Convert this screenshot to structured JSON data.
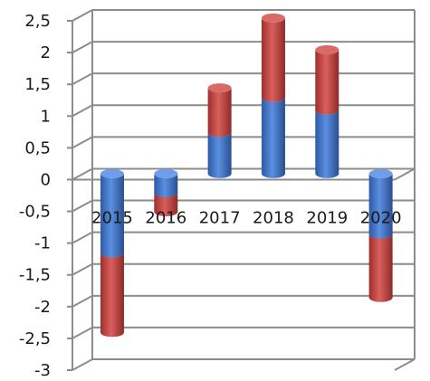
{
  "chart_data": {
    "type": "bar",
    "subtype": "stacked-3d-cylinder",
    "title": "",
    "xlabel": "",
    "ylabel": "",
    "categories": [
      "2015",
      "2016",
      "2017",
      "2018",
      "2019",
      "2020"
    ],
    "series": [
      {
        "color": "#4472c4",
        "values": [
          -1.25,
          -0.3,
          0.65,
          1.2,
          1.0,
          -0.95
        ]
      },
      {
        "color": "#c0504d",
        "values": [
          -1.25,
          -0.3,
          0.7,
          1.25,
          0.95,
          -1.0
        ]
      }
    ],
    "ylim": [
      -3,
      2.5
    ],
    "yticks": [
      "2,5",
      "2",
      "1,5",
      "1",
      "0,5",
      "0",
      "-0,5",
      "-1",
      "-1,5",
      "-2",
      "-2,5",
      "-3"
    ],
    "grid": true,
    "legend": "none"
  }
}
